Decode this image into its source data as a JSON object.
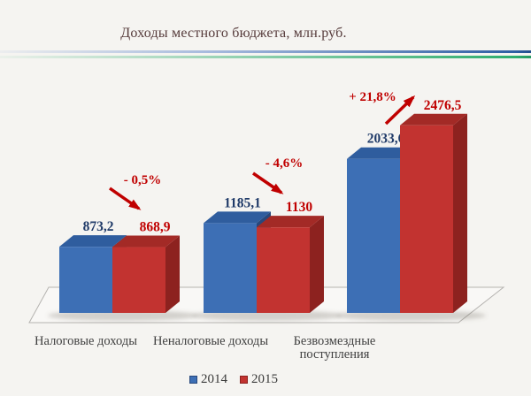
{
  "chart_data": {
    "type": "bar",
    "style": "3d-clustered",
    "title": "Доходы местного бюджета, млн.руб.",
    "unit": "млн.руб.",
    "categories": [
      "Налоговые доходы",
      "Неналоговые доходы",
      "Безвозмездные поступления"
    ],
    "series": [
      {
        "name": "2014",
        "values": [
          873.2,
          1185.1,
          2033.6
        ],
        "value_labels": [
          "873,2",
          "1185,1",
          "2033,6"
        ],
        "color": "#3d6fb5",
        "top_color": "#2f5d9e",
        "side_color": "#28487c",
        "label_color": "#1f3a68"
      },
      {
        "name": "2015",
        "values": [
          868.9,
          1130,
          2476.5
        ],
        "value_labels": [
          "868,9",
          "1130",
          "2476,5"
        ],
        "color": "#c23330",
        "top_color": "#a32a26",
        "side_color": "#8d221f",
        "label_color": "#c00000"
      }
    ],
    "annotations": [
      {
        "label": "- 0,5%",
        "direction": "down"
      },
      {
        "label": "- 4,6%",
        "direction": "down"
      },
      {
        "label": "+ 21,8%",
        "direction": "up"
      }
    ],
    "annotation_color": "#c00000",
    "legend_position": "bottom",
    "value_axis_visible": false,
    "gridlines": false
  }
}
